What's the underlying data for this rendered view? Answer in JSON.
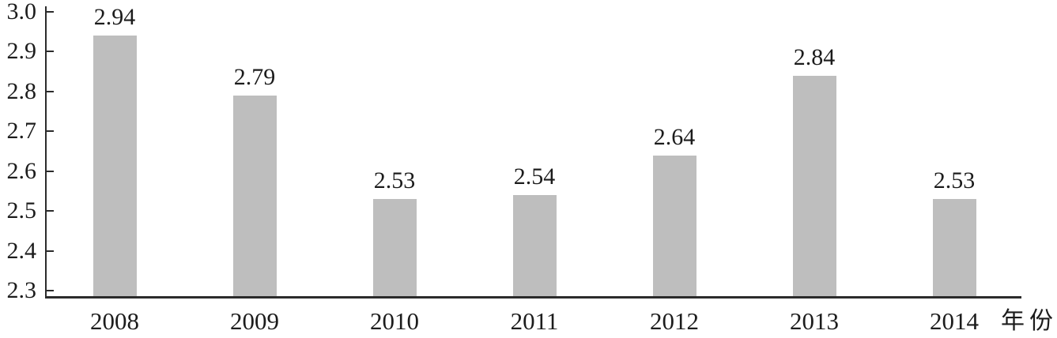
{
  "chart_data": {
    "type": "bar",
    "title": "",
    "categories": [
      "2008",
      "2009",
      "2010",
      "2011",
      "2012",
      "2013",
      "2014"
    ],
    "values": [
      2.94,
      2.79,
      2.53,
      2.54,
      2.64,
      2.84,
      2.53
    ],
    "value_labels": [
      "2.94",
      "2.79",
      "2.53",
      "2.54",
      "2.64",
      "2.84",
      "2.53"
    ],
    "xlabel": "年份",
    "ylabel": "",
    "ylim": [
      2.3,
      3.0
    ],
    "ytick_step": 0.1,
    "ytick_labels": [
      "3.0",
      "2.9",
      "2.8",
      "2.7",
      "2.6",
      "2.5",
      "2.4",
      "2.3"
    ],
    "grid": false,
    "legend": false,
    "colors": {
      "bar": "#bebebe",
      "axis": "#2b2b2b",
      "text": "#1c1c1c",
      "background": "#ffffff"
    }
  }
}
